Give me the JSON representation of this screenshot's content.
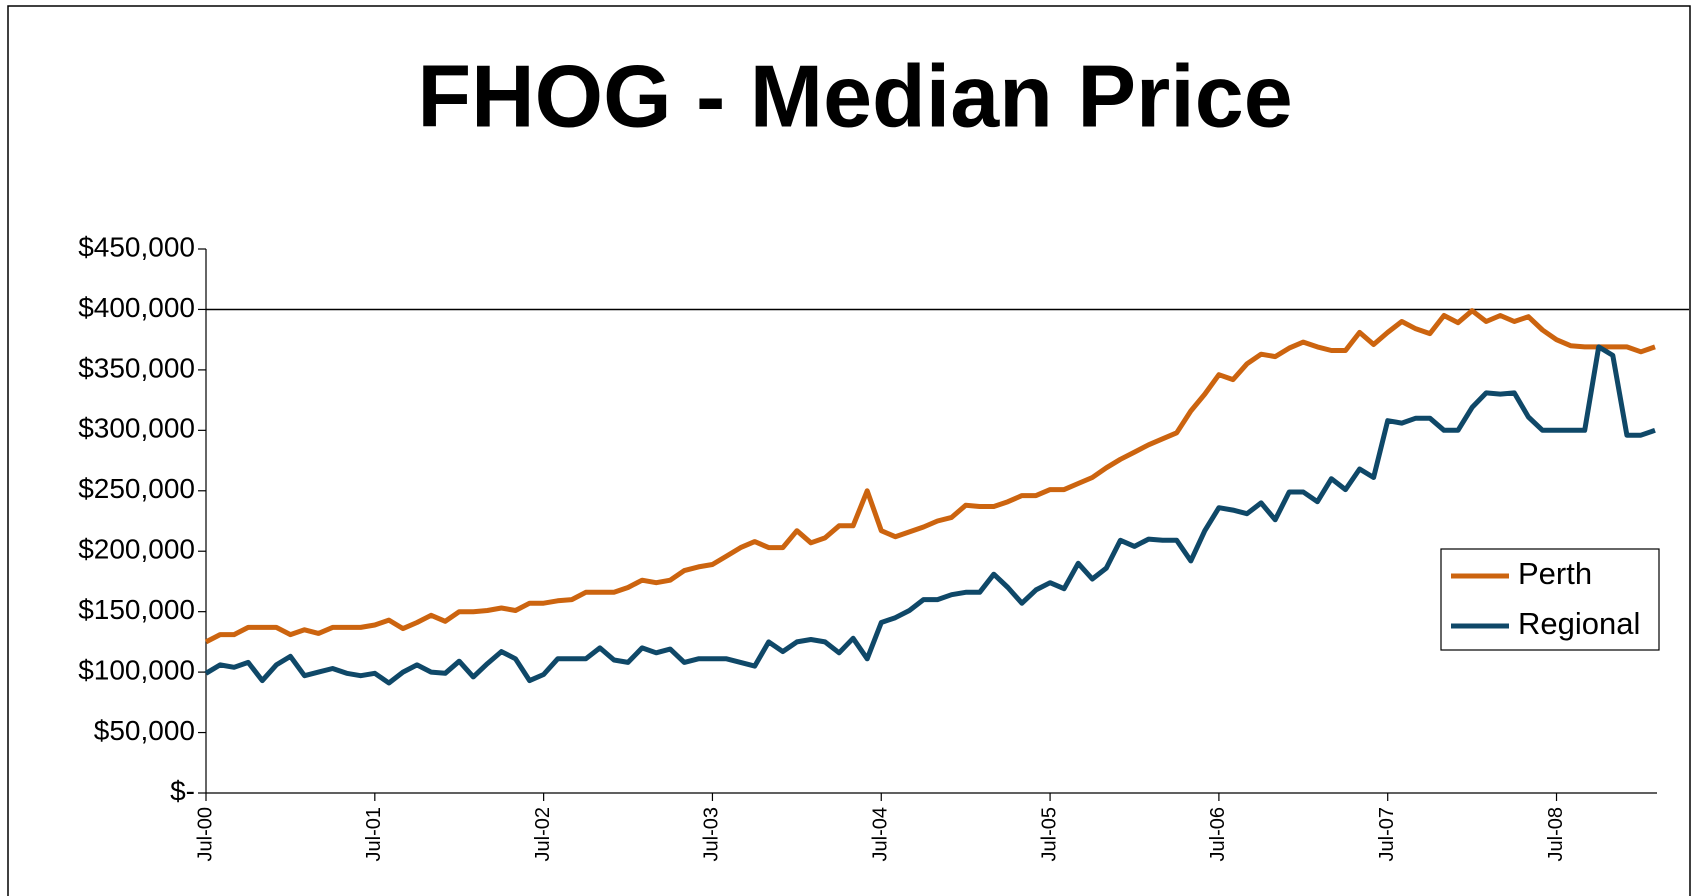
{
  "chart_data": {
    "type": "line",
    "title": "FHOG - Median Price",
    "categories": [
      "Jul-00",
      null,
      null,
      null,
      null,
      null,
      null,
      null,
      null,
      null,
      null,
      null,
      "Jul-01",
      null,
      null,
      null,
      null,
      null,
      null,
      null,
      null,
      null,
      null,
      null,
      "Jul-02",
      null,
      null,
      null,
      null,
      null,
      null,
      null,
      null,
      null,
      null,
      null,
      "Jul-03",
      null,
      null,
      null,
      null,
      null,
      null,
      null,
      null,
      null,
      null,
      null,
      "Jul-04",
      null,
      null,
      null,
      null,
      null,
      null,
      null,
      null,
      null,
      null,
      null,
      "Jul-05",
      null,
      null,
      null,
      null,
      null,
      null,
      null,
      null,
      null,
      null,
      null,
      "Jul-06",
      null,
      null,
      null,
      null,
      null,
      null,
      null,
      null,
      null,
      null,
      null,
      "Jul-07",
      null,
      null,
      null,
      null,
      null,
      null,
      null,
      null,
      null,
      null,
      null,
      "Jul-08",
      null,
      null,
      null,
      null,
      null,
      null,
      null
    ],
    "series": [
      {
        "name": "Perth",
        "color": "#cc640f",
        "values": [
          125000,
          131000,
          131000,
          137000,
          137000,
          137000,
          131000,
          135000,
          132000,
          137000,
          137000,
          137000,
          139000,
          143000,
          136000,
          141000,
          147000,
          142000,
          150000,
          150000,
          151000,
          153000,
          151000,
          157000,
          157000,
          159000,
          160000,
          166000,
          166000,
          166000,
          170000,
          176000,
          174000,
          176000,
          184000,
          187000,
          189000,
          196000,
          203000,
          208000,
          203000,
          203000,
          217000,
          207000,
          211000,
          221000,
          221000,
          250000,
          217000,
          212000,
          216000,
          220000,
          225000,
          228000,
          238000,
          237000,
          237000,
          241000,
          246000,
          246000,
          251000,
          251000,
          256000,
          261000,
          269000,
          276000,
          282000,
          288000,
          293000,
          298000,
          316000,
          330000,
          346000,
          342000,
          355000,
          363000,
          361000,
          368000,
          373000,
          369000,
          366000,
          366000,
          381000,
          371000,
          381000,
          390000,
          384000,
          380000,
          395000,
          389000,
          399000,
          390000,
          395000,
          390000,
          394000,
          383000,
          375000,
          370000,
          369000,
          369000,
          369000,
          369000,
          365000,
          369000
        ]
      },
      {
        "name": "Regional",
        "color": "#0f4868",
        "values": [
          99000,
          106000,
          104000,
          108000,
          93000,
          106000,
          113000,
          97000,
          100000,
          103000,
          99000,
          97000,
          99000,
          91000,
          100000,
          106000,
          100000,
          99000,
          109000,
          96000,
          107000,
          117000,
          111000,
          93000,
          98000,
          111000,
          111000,
          111000,
          120000,
          110000,
          108000,
          120000,
          116000,
          119000,
          108000,
          111000,
          111000,
          111000,
          108000,
          105000,
          125000,
          117000,
          125000,
          127000,
          125000,
          116000,
          128000,
          111000,
          141000,
          145000,
          151000,
          160000,
          160000,
          164000,
          166000,
          166000,
          181000,
          170000,
          157000,
          168000,
          174000,
          169000,
          190000,
          177000,
          186000,
          209000,
          204000,
          210000,
          209000,
          209000,
          192000,
          217000,
          236000,
          234000,
          231000,
          240000,
          226000,
          249000,
          249000,
          241000,
          260000,
          251000,
          268000,
          261000,
          308000,
          306000,
          310000,
          310000,
          300000,
          300000,
          319000,
          331000,
          330000,
          331000,
          311000,
          300000,
          300000,
          300000,
          300000,
          369000,
          362000,
          296000,
          296000,
          300000
        ]
      }
    ],
    "reference_line": 400000,
    "ylim": [
      0,
      450000
    ],
    "yticks": [
      {
        "value": 0,
        "label": "$-"
      },
      {
        "value": 50000,
        "label": "$50,000"
      },
      {
        "value": 100000,
        "label": "$100,000"
      },
      {
        "value": 150000,
        "label": "$150,000"
      },
      {
        "value": 200000,
        "label": "$200,000"
      },
      {
        "value": 250000,
        "label": "$250,000"
      },
      {
        "value": 300000,
        "label": "$300,000"
      },
      {
        "value": 350000,
        "label": "$350,000"
      },
      {
        "value": 400000,
        "label": "$400,000"
      },
      {
        "value": 450000,
        "label": "$450,000"
      }
    ],
    "grid": false,
    "legend": "right"
  }
}
